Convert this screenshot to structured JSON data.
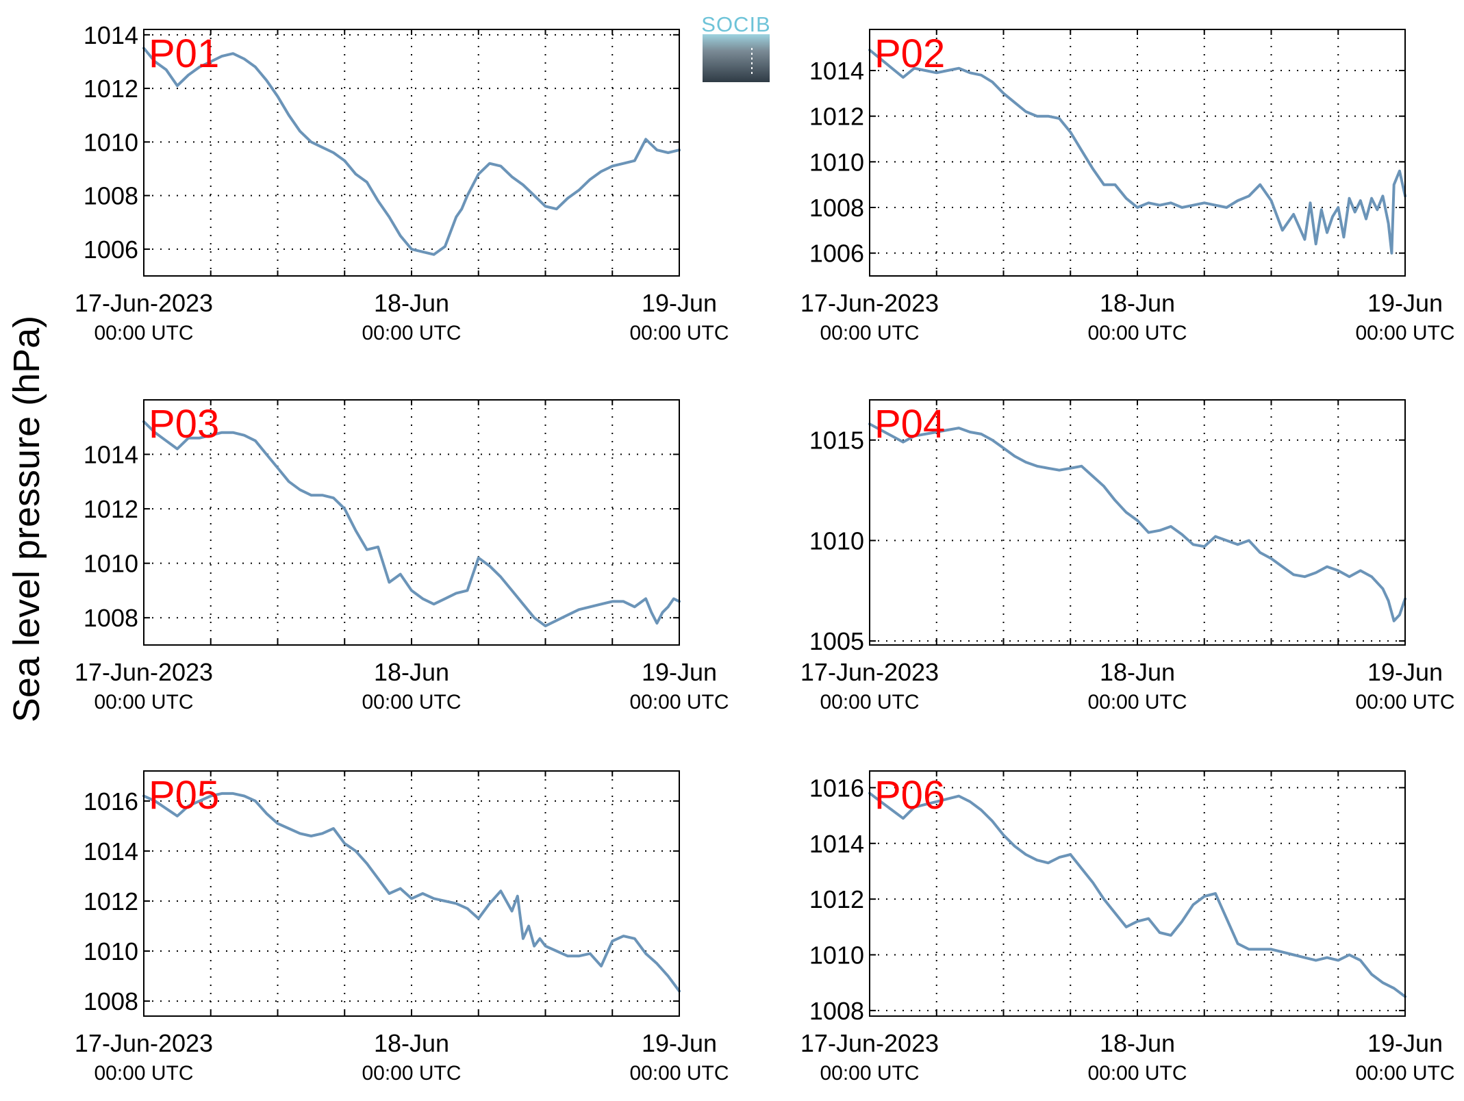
{
  "figure": {
    "ylabel": "Sea level pressure (hPa)",
    "logo": {
      "text": "SOCIB",
      "colors": {
        "text": "#6dc3d8",
        "top": "#9dd2df",
        "bottom": "#2f3b45"
      }
    }
  },
  "chart_data": [
    {
      "type": "line",
      "title": "P01",
      "x_ticks": [
        {
          "label": "17-Jun-2023",
          "sublabel": "00:00 UTC"
        },
        {
          "label": "18-Jun",
          "sublabel": "00:00 UTC"
        },
        {
          "label": "19-Jun",
          "sublabel": "00:00 UTC"
        }
      ],
      "x_unit": "hours since 17-Jun-2023 00:00 UTC",
      "xlim": [
        0,
        48
      ],
      "x_grid_step_hours": 6,
      "ylim": [
        1005,
        1014.2
      ],
      "yticks": [
        1006,
        1008,
        1010,
        1012,
        1014
      ],
      "grid": true,
      "color": "#6b94b8",
      "series": [
        {
          "x": [
            0,
            1,
            2,
            3,
            4,
            5,
            6,
            7,
            8,
            9,
            10,
            11,
            12,
            13,
            14,
            15,
            16,
            17,
            18,
            19,
            20,
            21,
            22,
            23,
            24,
            25,
            26,
            27,
            28,
            28.5,
            29,
            30,
            31,
            32,
            33,
            34,
            35,
            36,
            37,
            38,
            39,
            40,
            41,
            42,
            43,
            44,
            45,
            45.5,
            46,
            47,
            48
          ],
          "y": [
            1013.5,
            1013.0,
            1012.7,
            1012.1,
            1012.5,
            1012.8,
            1013.0,
            1013.2,
            1013.3,
            1013.1,
            1012.8,
            1012.3,
            1011.7,
            1011.0,
            1010.4,
            1010.0,
            1009.8,
            1009.6,
            1009.3,
            1008.8,
            1008.5,
            1007.8,
            1007.2,
            1006.5,
            1006.0,
            1005.9,
            1005.8,
            1006.1,
            1007.2,
            1007.5,
            1008.0,
            1008.8,
            1009.2,
            1009.1,
            1008.7,
            1008.4,
            1008.0,
            1007.6,
            1007.5,
            1007.9,
            1008.2,
            1008.6,
            1008.9,
            1009.1,
            1009.2,
            1009.3,
            1010.1,
            1009.9,
            1009.7,
            1009.6,
            1009.7
          ]
        }
      ]
    },
    {
      "type": "line",
      "title": "P02",
      "x_ticks": [
        {
          "label": "17-Jun-2023",
          "sublabel": "00:00 UTC"
        },
        {
          "label": "18-Jun",
          "sublabel": "00:00 UTC"
        },
        {
          "label": "19-Jun",
          "sublabel": "00:00 UTC"
        }
      ],
      "x_unit": "hours since 17-Jun-2023 00:00 UTC",
      "xlim": [
        0,
        48
      ],
      "x_grid_step_hours": 6,
      "ylim": [
        1005,
        1015.8
      ],
      "yticks": [
        1006,
        1008,
        1010,
        1012,
        1014
      ],
      "grid": true,
      "color": "#6b94b8",
      "series": [
        {
          "x": [
            0,
            1,
            2,
            3,
            4,
            5,
            6,
            7,
            8,
            9,
            10,
            11,
            12,
            13,
            14,
            15,
            16,
            17,
            18,
            19,
            20,
            21,
            22,
            23,
            24,
            25,
            26,
            27,
            28,
            29,
            30,
            31,
            32,
            33,
            34,
            35,
            36,
            37,
            38,
            39,
            39.5,
            40,
            40.5,
            41,
            41.5,
            42,
            42.5,
            43,
            43.5,
            44,
            44.5,
            45,
            45.5,
            46,
            46.5,
            46.8,
            47,
            47.5,
            48
          ],
          "y": [
            1014.9,
            1014.5,
            1014.1,
            1013.7,
            1014.1,
            1014.0,
            1013.9,
            1014.0,
            1014.1,
            1013.9,
            1013.8,
            1013.5,
            1013.0,
            1012.6,
            1012.2,
            1012.0,
            1012.0,
            1011.9,
            1011.3,
            1010.5,
            1009.7,
            1009.0,
            1009.0,
            1008.4,
            1008.0,
            1008.2,
            1008.1,
            1008.2,
            1008.0,
            1008.1,
            1008.2,
            1008.1,
            1008.0,
            1008.3,
            1008.5,
            1009.0,
            1008.3,
            1007.0,
            1007.7,
            1006.6,
            1008.2,
            1006.4,
            1007.9,
            1006.9,
            1007.6,
            1008.0,
            1006.7,
            1008.4,
            1007.8,
            1008.3,
            1007.5,
            1008.4,
            1007.9,
            1008.5,
            1007.3,
            1006.0,
            1009.0,
            1009.6,
            1008.5
          ]
        }
      ]
    },
    {
      "type": "line",
      "title": "P03",
      "x_ticks": [
        {
          "label": "17-Jun-2023",
          "sublabel": "00:00 UTC"
        },
        {
          "label": "18-Jun",
          "sublabel": "00:00 UTC"
        },
        {
          "label": "19-Jun",
          "sublabel": "00:00 UTC"
        }
      ],
      "x_unit": "hours since 17-Jun-2023 00:00 UTC",
      "xlim": [
        0,
        48
      ],
      "x_grid_step_hours": 6,
      "ylim": [
        1007,
        1016
      ],
      "yticks": [
        1008,
        1010,
        1012,
        1014
      ],
      "grid": true,
      "color": "#6b94b8",
      "series": [
        {
          "x": [
            0,
            1,
            2,
            3,
            4,
            5,
            6,
            7,
            8,
            9,
            10,
            11,
            12,
            13,
            14,
            15,
            16,
            17,
            18,
            19,
            20,
            21,
            22,
            23,
            24,
            25,
            26,
            27,
            28,
            29,
            30,
            31,
            32,
            33,
            34,
            35,
            36,
            37,
            38,
            39,
            40,
            41,
            42,
            43,
            44,
            45,
            45.5,
            46,
            46.5,
            47,
            47.5,
            48
          ],
          "y": [
            1015.2,
            1014.8,
            1014.5,
            1014.2,
            1014.6,
            1014.6,
            1014.7,
            1014.8,
            1014.8,
            1014.7,
            1014.5,
            1014.0,
            1013.5,
            1013.0,
            1012.7,
            1012.5,
            1012.5,
            1012.4,
            1012.0,
            1011.2,
            1010.5,
            1010.6,
            1009.3,
            1009.6,
            1009.0,
            1008.7,
            1008.5,
            1008.7,
            1008.9,
            1009.0,
            1010.2,
            1009.9,
            1009.5,
            1009.0,
            1008.5,
            1008.0,
            1007.7,
            1007.9,
            1008.1,
            1008.3,
            1008.4,
            1008.5,
            1008.6,
            1008.6,
            1008.4,
            1008.7,
            1008.2,
            1007.8,
            1008.2,
            1008.4,
            1008.7,
            1008.6
          ]
        }
      ]
    },
    {
      "type": "line",
      "title": "P04",
      "x_ticks": [
        {
          "label": "17-Jun-2023",
          "sublabel": "00:00 UTC"
        },
        {
          "label": "18-Jun",
          "sublabel": "00:00 UTC"
        },
        {
          "label": "19-Jun",
          "sublabel": "00:00 UTC"
        }
      ],
      "x_unit": "hours since 17-Jun-2023 00:00 UTC",
      "xlim": [
        0,
        48
      ],
      "x_grid_step_hours": 6,
      "ylim": [
        1004.8,
        1017
      ],
      "yticks": [
        1005,
        1010,
        1015
      ],
      "grid": true,
      "color": "#6b94b8",
      "series": [
        {
          "x": [
            0,
            1,
            2,
            3,
            4,
            5,
            6,
            7,
            8,
            9,
            10,
            11,
            12,
            13,
            14,
            15,
            16,
            17,
            18,
            19,
            20,
            21,
            22,
            23,
            24,
            25,
            26,
            27,
            28,
            29,
            30,
            31,
            32,
            33,
            34,
            35,
            36,
            37,
            38,
            39,
            40,
            41,
            42,
            43,
            44,
            45,
            46,
            46.5,
            47,
            47.5,
            48
          ],
          "y": [
            1015.8,
            1015.5,
            1015.2,
            1014.9,
            1015.2,
            1015.3,
            1015.4,
            1015.5,
            1015.6,
            1015.4,
            1015.3,
            1015.0,
            1014.6,
            1014.2,
            1013.9,
            1013.7,
            1013.6,
            1013.5,
            1013.6,
            1013.7,
            1013.2,
            1012.7,
            1012.0,
            1011.4,
            1011.0,
            1010.4,
            1010.5,
            1010.7,
            1010.3,
            1009.8,
            1009.7,
            1010.2,
            1010.0,
            1009.8,
            1010.0,
            1009.4,
            1009.1,
            1008.7,
            1008.3,
            1008.2,
            1008.4,
            1008.7,
            1008.5,
            1008.2,
            1008.5,
            1008.2,
            1007.6,
            1007.0,
            1006.0,
            1006.3,
            1007.1
          ]
        }
      ]
    },
    {
      "type": "line",
      "title": "P05",
      "x_ticks": [
        {
          "label": "17-Jun-2023",
          "sublabel": "00:00 UTC"
        },
        {
          "label": "18-Jun",
          "sublabel": "00:00 UTC"
        },
        {
          "label": "19-Jun",
          "sublabel": "00:00 UTC"
        }
      ],
      "x_unit": "hours since 17-Jun-2023 00:00 UTC",
      "xlim": [
        0,
        48
      ],
      "x_grid_step_hours": 6,
      "ylim": [
        1007.4,
        1017.2
      ],
      "yticks": [
        1008,
        1010,
        1012,
        1014,
        1016
      ],
      "grid": true,
      "color": "#6b94b8",
      "series": [
        {
          "x": [
            0,
            1,
            2,
            3,
            4,
            5,
            6,
            7,
            8,
            9,
            10,
            11,
            12,
            13,
            14,
            15,
            16,
            17,
            18,
            19,
            20,
            21,
            22,
            23,
            24,
            25,
            26,
            27,
            28,
            29,
            30,
            31,
            32,
            33,
            33.5,
            34,
            34.5,
            35,
            35.5,
            36,
            37,
            38,
            39,
            40,
            41,
            42,
            43,
            44,
            45,
            46,
            47,
            48
          ],
          "y": [
            1016.2,
            1016.0,
            1015.7,
            1015.4,
            1015.8,
            1016.0,
            1016.2,
            1016.3,
            1016.3,
            1016.2,
            1016.0,
            1015.5,
            1015.1,
            1014.9,
            1014.7,
            1014.6,
            1014.7,
            1014.9,
            1014.3,
            1014.0,
            1013.5,
            1012.9,
            1012.3,
            1012.5,
            1012.1,
            1012.3,
            1012.1,
            1012.0,
            1011.9,
            1011.7,
            1011.3,
            1011.9,
            1012.4,
            1011.6,
            1012.2,
            1010.5,
            1011.0,
            1010.2,
            1010.5,
            1010.2,
            1010.0,
            1009.8,
            1009.8,
            1009.9,
            1009.4,
            1010.4,
            1010.6,
            1010.5,
            1009.9,
            1009.5,
            1009.0,
            1008.4
          ]
        }
      ]
    },
    {
      "type": "line",
      "title": "P06",
      "x_ticks": [
        {
          "label": "17-Jun-2023",
          "sublabel": "00:00 UTC"
        },
        {
          "label": "18-Jun",
          "sublabel": "00:00 UTC"
        },
        {
          "label": "19-Jun",
          "sublabel": "00:00 UTC"
        }
      ],
      "x_unit": "hours since 17-Jun-2023 00:00 UTC",
      "xlim": [
        0,
        48
      ],
      "x_grid_step_hours": 6,
      "ylim": [
        1007.8,
        1016.6
      ],
      "yticks": [
        1008,
        1010,
        1012,
        1014,
        1016
      ],
      "grid": true,
      "color": "#6b94b8",
      "series": [
        {
          "x": [
            0,
            1,
            2,
            3,
            4,
            5,
            6,
            7,
            8,
            9,
            10,
            11,
            12,
            13,
            14,
            15,
            16,
            17,
            18,
            19,
            20,
            21,
            22,
            23,
            24,
            25,
            26,
            27,
            28,
            29,
            30,
            31,
            32,
            33,
            34,
            35,
            36,
            37,
            38,
            39,
            40,
            41,
            42,
            43,
            44,
            45,
            46,
            47,
            48
          ],
          "y": [
            1015.8,
            1015.5,
            1015.2,
            1014.9,
            1015.3,
            1015.4,
            1015.5,
            1015.6,
            1015.7,
            1015.5,
            1015.2,
            1014.8,
            1014.3,
            1013.9,
            1013.6,
            1013.4,
            1013.3,
            1013.5,
            1013.6,
            1013.1,
            1012.6,
            1012.0,
            1011.5,
            1011.0,
            1011.2,
            1011.3,
            1010.8,
            1010.7,
            1011.2,
            1011.8,
            1012.1,
            1012.2,
            1011.3,
            1010.4,
            1010.2,
            1010.2,
            1010.2,
            1010.1,
            1010.0,
            1009.9,
            1009.8,
            1009.9,
            1009.8,
            1010.0,
            1009.8,
            1009.3,
            1009.0,
            1008.8,
            1008.5
          ]
        }
      ]
    }
  ]
}
